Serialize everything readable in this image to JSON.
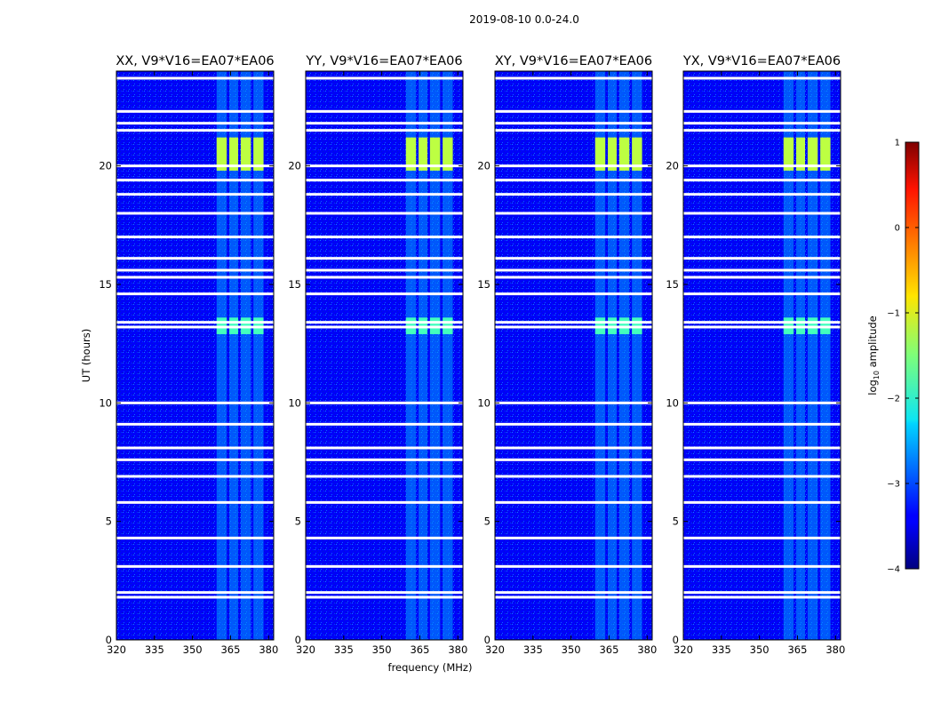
{
  "figure_title": "2019-08-10 0.0-24.0",
  "chart_data": {
    "type": "heatmap",
    "suptitle": "2019-08-10 0.0-24.0",
    "xlabel": "frequency (MHz)",
    "ylabel": "UT (hours)",
    "xlim": [
      320,
      382
    ],
    "ylim": [
      0,
      24
    ],
    "xticks": [
      320,
      335,
      350,
      365,
      380
    ],
    "yticks": [
      0,
      5,
      10,
      15,
      20
    ],
    "panels": [
      {
        "title": "XX, V9*V16=EA07*EA06"
      },
      {
        "title": "YY, V9*V16=EA07*EA06"
      },
      {
        "title": "XY, V9*V16=EA07*EA06"
      },
      {
        "title": "YX, V9*V16=EA07*EA06"
      }
    ],
    "background_log_amplitude": -3.4,
    "rfi_bands_mhz": [
      [
        359.5,
        363.5
      ],
      [
        364.5,
        368
      ],
      [
        369,
        373
      ],
      [
        374,
        378
      ]
    ],
    "strong_rfi_intervals_ut": [
      [
        19.8,
        21.2
      ],
      [
        12.9,
        13.6
      ]
    ],
    "flagged_ut_hours": [
      23.7,
      22.3,
      21.8,
      21.5,
      20.0,
      19.4,
      18.8,
      18.0,
      17.0,
      16.1,
      15.6,
      15.3,
      14.6,
      13.4,
      13.2,
      10.0,
      9.1,
      8.1,
      7.6,
      6.9,
      5.8,
      4.3,
      3.1,
      2.0,
      1.8
    ],
    "colorbar": {
      "label_prefix": "log",
      "label_sub": "10",
      "label_suffix": " amplitude",
      "range": [
        -4,
        1
      ],
      "ticks": [
        1,
        0,
        -1,
        -2,
        -3,
        -4
      ],
      "tick_labels": [
        "1",
        "0",
        "−1",
        "−2",
        "−3",
        "−4"
      ],
      "colormap": "jet"
    }
  }
}
